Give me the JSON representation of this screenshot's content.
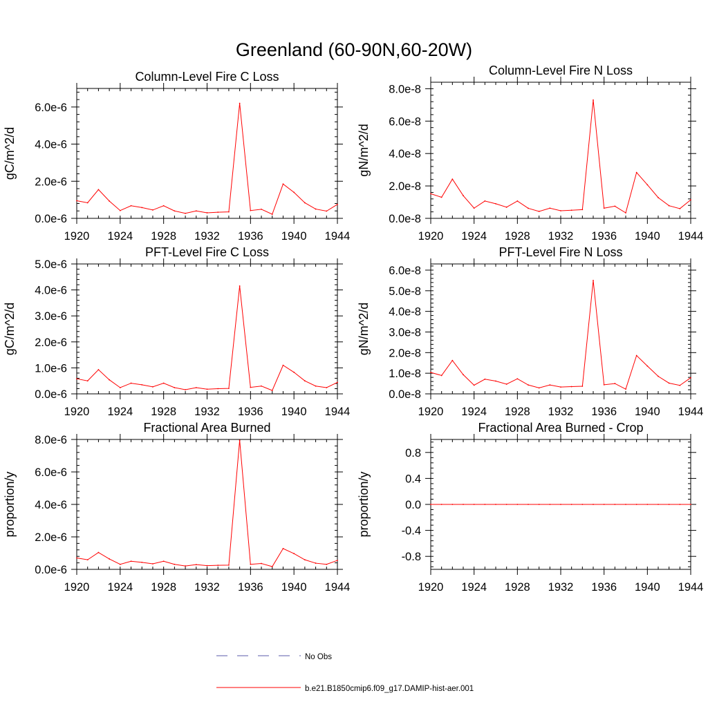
{
  "page_title": "Greenland (60-90N,60-20W)",
  "legend": {
    "entries": [
      {
        "label": "No Obs",
        "color": "#5a5aa8",
        "style": "dashed"
      },
      {
        "label": "b.e21.B1850cmip6.f09_g17.DAMIP-hist-aer.001",
        "color": "#ff0000",
        "style": "solid"
      }
    ]
  },
  "chart_data": [
    {
      "type": "line",
      "title": "Column-Level Fire C Loss",
      "ylabel": "gC/m^2/d",
      "xlim": [
        1920,
        1944
      ],
      "ylim": [
        0,
        7e-06
      ],
      "xticks": [
        1920,
        1924,
        1928,
        1932,
        1936,
        1940,
        1944
      ],
      "xtick_labels": [
        "1920",
        "1924",
        "1928",
        "1932",
        "1936",
        "1940",
        "1944"
      ],
      "yticks": [
        0,
        2e-06,
        4e-06,
        6e-06
      ],
      "ytick_labels": [
        "0.0e-6",
        "2.0e-6",
        "4.0e-6",
        "6.0e-6"
      ],
      "x": [
        1920,
        1921,
        1922,
        1923,
        1924,
        1925,
        1926,
        1927,
        1928,
        1929,
        1930,
        1931,
        1932,
        1933,
        1934,
        1935,
        1936,
        1937,
        1938,
        1939,
        1940,
        1941,
        1942,
        1943,
        1944
      ],
      "series": [
        {
          "name": "b.e21.B1850cmip6.f09_g17.DAMIP-hist-aer.001",
          "color": "#ff0000",
          "values": [
            9.5e-07,
            8.4e-07,
            1.55e-06,
            9.3e-07,
            4.2e-07,
            6.8e-07,
            5.8e-07,
            4.5e-07,
            6.8e-07,
            4e-07,
            2.7e-07,
            4e-07,
            3e-07,
            3.3e-07,
            3.5e-07,
            6.2e-06,
            4.2e-07,
            4.9e-07,
            2.2e-07,
            1.85e-06,
            1.4e-06,
            8.4e-07,
            5e-07,
            3.9e-07,
            7.5e-07
          ]
        }
      ]
    },
    {
      "type": "line",
      "title": "Column-Level Fire N Loss",
      "ylabel": "gN/m^2/d",
      "xlim": [
        1920,
        1944
      ],
      "ylim": [
        0,
        8.4e-08
      ],
      "xticks": [
        1920,
        1924,
        1928,
        1932,
        1936,
        1940,
        1944
      ],
      "xtick_labels": [
        "1920",
        "1924",
        "1928",
        "1932",
        "1936",
        "1940",
        "1944"
      ],
      "yticks": [
        0,
        2e-08,
        4e-08,
        6e-08,
        8e-08
      ],
      "ytick_labels": [
        "0.0e-8",
        "2.0e-8",
        "4.0e-8",
        "6.0e-8",
        "8.0e-8"
      ],
      "x": [
        1920,
        1921,
        1922,
        1923,
        1924,
        1925,
        1926,
        1927,
        1928,
        1929,
        1930,
        1931,
        1932,
        1933,
        1934,
        1935,
        1936,
        1937,
        1938,
        1939,
        1940,
        1941,
        1942,
        1943,
        1944
      ],
      "series": [
        {
          "name": "b.e21.B1850cmip6.f09_g17.DAMIP-hist-aer.001",
          "color": "#ff0000",
          "values": [
            1.52e-08,
            1.3e-08,
            2.42e-08,
            1.4e-08,
            6.3e-09,
            1.07e-08,
            9e-09,
            6.9e-09,
            1.07e-08,
            6.2e-09,
            4.3e-09,
            6.3e-09,
            4.7e-09,
            5e-09,
            5.4e-09,
            7.3e-08,
            6.3e-09,
            7.5e-09,
            3.4e-09,
            2.83e-08,
            2.07e-08,
            1.28e-08,
            7.8e-09,
            6e-09,
            1.14e-08
          ]
        }
      ]
    },
    {
      "type": "line",
      "title": "PFT-Level Fire C Loss",
      "ylabel": "gC/m^2/d",
      "xlim": [
        1920,
        1944
      ],
      "ylim": [
        0,
        5e-06
      ],
      "xticks": [
        1920,
        1924,
        1928,
        1932,
        1936,
        1940,
        1944
      ],
      "xtick_labels": [
        "1920",
        "1924",
        "1928",
        "1932",
        "1936",
        "1940",
        "1944"
      ],
      "yticks": [
        0,
        1e-06,
        2e-06,
        3e-06,
        4e-06,
        5e-06
      ],
      "ytick_labels": [
        "0.0e-6",
        "1.0e-6",
        "2.0e-6",
        "3.0e-6",
        "4.0e-6",
        "5.0e-6"
      ],
      "x": [
        1920,
        1921,
        1922,
        1923,
        1924,
        1925,
        1926,
        1927,
        1928,
        1929,
        1930,
        1931,
        1932,
        1933,
        1934,
        1935,
        1936,
        1937,
        1938,
        1939,
        1940,
        1941,
        1942,
        1943,
        1944
      ],
      "series": [
        {
          "name": "b.e21.B1850cmip6.f09_g17.DAMIP-hist-aer.001",
          "color": "#ff0000",
          "values": [
            5.8e-07,
            5e-07,
            9.3e-07,
            5.4e-07,
            2.4e-07,
            4.1e-07,
            3.5e-07,
            2.7e-07,
            4.1e-07,
            2.4e-07,
            1.6e-07,
            2.4e-07,
            1.8e-07,
            2e-07,
            2.1e-07,
            4.15e-06,
            2.5e-07,
            3e-07,
            1.3e-07,
            1.1e-06,
            8.3e-07,
            5e-07,
            3e-07,
            2.4e-07,
            4.4e-07
          ]
        }
      ]
    },
    {
      "type": "line",
      "title": "PFT-Level Fire N Loss",
      "ylabel": "gN/m^2/d",
      "xlim": [
        1920,
        1944
      ],
      "ylim": [
        0,
        6.3e-08
      ],
      "xticks": [
        1920,
        1924,
        1928,
        1932,
        1936,
        1940,
        1944
      ],
      "xtick_labels": [
        "1920",
        "1924",
        "1928",
        "1932",
        "1936",
        "1940",
        "1944"
      ],
      "yticks": [
        0,
        1e-08,
        2e-08,
        3e-08,
        4e-08,
        5e-08,
        6e-08
      ],
      "ytick_labels": [
        "0.0e-8",
        "1.0e-8",
        "2.0e-8",
        "3.0e-8",
        "4.0e-8",
        "5.0e-8",
        "6.0e-8"
      ],
      "x": [
        1920,
        1921,
        1922,
        1923,
        1924,
        1925,
        1926,
        1927,
        1928,
        1929,
        1930,
        1931,
        1932,
        1933,
        1934,
        1935,
        1936,
        1937,
        1938,
        1939,
        1940,
        1941,
        1942,
        1943,
        1944
      ],
      "series": [
        {
          "name": "b.e21.B1850cmip6.f09_g17.DAMIP-hist-aer.001",
          "color": "#ff0000",
          "values": [
            1.04e-08,
            8.9e-09,
            1.62e-08,
            9.3e-09,
            4.2e-09,
            7.1e-09,
            6.2e-09,
            4.7e-09,
            7.3e-09,
            4.3e-09,
            2.9e-09,
            4.3e-09,
            3.3e-09,
            3.5e-09,
            3.7e-09,
            5.5e-08,
            4.4e-09,
            5e-09,
            2.3e-09,
            1.86e-08,
            1.35e-08,
            8.5e-09,
            5.2e-09,
            4.1e-09,
            7.8e-09
          ]
        }
      ]
    },
    {
      "type": "line",
      "title": "Fractional Area Burned",
      "ylabel": "proportion/y",
      "xlim": [
        1920,
        1944
      ],
      "ylim": [
        0,
        8e-06
      ],
      "xticks": [
        1920,
        1924,
        1928,
        1932,
        1936,
        1940,
        1944
      ],
      "xtick_labels": [
        "1920",
        "1924",
        "1928",
        "1932",
        "1936",
        "1940",
        "1944"
      ],
      "yticks": [
        0,
        2e-06,
        4e-06,
        6e-06,
        8e-06
      ],
      "ytick_labels": [
        "0.0e-6",
        "2.0e-6",
        "4.0e-6",
        "6.0e-6",
        "8.0e-6"
      ],
      "x": [
        1920,
        1921,
        1922,
        1923,
        1924,
        1925,
        1926,
        1927,
        1928,
        1929,
        1930,
        1931,
        1932,
        1933,
        1934,
        1935,
        1936,
        1937,
        1938,
        1939,
        1940,
        1941,
        1942,
        1943,
        1944
      ],
      "series": [
        {
          "name": "b.e21.B1850cmip6.f09_g17.DAMIP-hist-aer.001",
          "color": "#ff0000",
          "values": [
            7e-07,
            5.9e-07,
            1.04e-06,
            6.4e-07,
            3.1e-07,
            5e-07,
            4.3e-07,
            3.4e-07,
            5e-07,
            3.1e-07,
            2.1e-07,
            2.9e-07,
            2.3e-07,
            2.5e-07,
            2.6e-07,
            7.95e-06,
            3.1e-07,
            3.6e-07,
            1.7e-07,
            1.28e-06,
            9.7e-07,
            5.9e-07,
            3.8e-07,
            3.1e-07,
            5.5e-07
          ]
        }
      ]
    },
    {
      "type": "line",
      "title": "Fractional Area Burned - Crop",
      "ylabel": "proportion/y",
      "xlim": [
        1920,
        1944
      ],
      "ylim": [
        -1,
        1
      ],
      "xticks": [
        1920,
        1924,
        1928,
        1932,
        1936,
        1940,
        1944
      ],
      "xtick_labels": [
        "1920",
        "1924",
        "1928",
        "1932",
        "1936",
        "1940",
        "1944"
      ],
      "yticks": [
        -0.8,
        -0.4,
        0,
        0.4,
        0.8
      ],
      "ytick_labels": [
        "-0.8",
        "-0.4",
        "0.0",
        "0.4",
        "0.8"
      ],
      "x": [
        1920,
        1921,
        1922,
        1923,
        1924,
        1925,
        1926,
        1927,
        1928,
        1929,
        1930,
        1931,
        1932,
        1933,
        1934,
        1935,
        1936,
        1937,
        1938,
        1939,
        1940,
        1941,
        1942,
        1943,
        1944
      ],
      "series": [
        {
          "name": "b.e21.B1850cmip6.f09_g17.DAMIP-hist-aer.001",
          "color": "#ff0000",
          "values": [
            0,
            0,
            0,
            0,
            0,
            0,
            0,
            0,
            0,
            0,
            0,
            0,
            0,
            0,
            0,
            0,
            0,
            0,
            0,
            0,
            0,
            0,
            0,
            0,
            0
          ]
        }
      ]
    }
  ]
}
